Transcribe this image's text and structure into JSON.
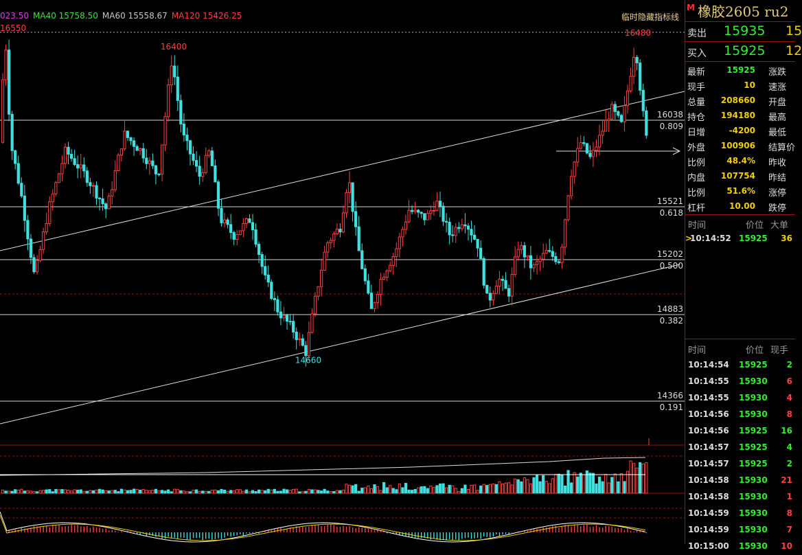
{
  "window": {
    "hide_indicators_label": "临时隐藏指标线"
  },
  "indicators": [
    {
      "label": "023.50",
      "color": "#e040e0"
    },
    {
      "label": "MA40 15758.50",
      "color": "#40e040"
    },
    {
      "label": "MA60 15558.67",
      "color": "#c8c8c8"
    },
    {
      "label": "MA120 15426.25",
      "color": "#ff4040"
    }
  ],
  "chart_data": {
    "type": "candlestick",
    "price_range": [
      14070,
      16600
    ],
    "top_left_label": "16550",
    "annotations": [
      {
        "label": "16400",
        "price": 16400,
        "color": "#ff4040"
      },
      {
        "label": "16480",
        "price": 16480,
        "color": "#ff4040"
      },
      {
        "label": "14660",
        "price": 14660,
        "color": "#40e0e0"
      }
    ],
    "fib_levels": [
      {
        "price": "16038",
        "ratio": "0.809"
      },
      {
        "price": "15521",
        "ratio": "0.618"
      },
      {
        "price": "15202",
        "ratio": "0.500"
      },
      {
        "price": "14883",
        "ratio": "0.382"
      },
      {
        "price": "14366",
        "ratio": "0.191"
      }
    ],
    "colors": {
      "up": "#ff4040",
      "down": "#40e0e0",
      "trend": "#e0e0e0"
    }
  },
  "panel": {
    "badge": "M",
    "instrument": "橡胶2605  ru2",
    "sell": {
      "label": "卖出",
      "price": "15935",
      "qty": "15"
    },
    "buy": {
      "label": "买入",
      "price": "15925",
      "qty": "12"
    },
    "stats": [
      {
        "label": "最新",
        "value": "15925",
        "color": "#33ee33",
        "label2": "涨跌"
      },
      {
        "label": "现手",
        "value": "10",
        "color": "#f0d000",
        "label2": "速涨"
      },
      {
        "label": "总量",
        "value": "208660",
        "color": "#f0d000",
        "label2": "开盘"
      },
      {
        "label": "持仓",
        "value": "194180",
        "color": "#f0d000",
        "label2": "最高"
      },
      {
        "label": "日增",
        "value": "-4200",
        "color": "#f0d000",
        "label2": "最低"
      },
      {
        "label": "外盘",
        "value": "100906",
        "color": "#f0d000",
        "label2": "结算价"
      },
      {
        "label": "比例",
        "value": "48.4%",
        "color": "#f0d000",
        "label2": "昨收"
      },
      {
        "label": "内盘",
        "value": "107754",
        "color": "#f0d000",
        "label2": "昨结"
      },
      {
        "label": "比例",
        "value": "51.6%",
        "color": "#f0d000",
        "label2": "涨停"
      },
      {
        "label": "杠杆",
        "value": "10.00",
        "color": "#f0d000",
        "label2": "跌停"
      }
    ],
    "big_orders": {
      "headers": {
        "time": "时间",
        "price": "价位",
        "size": "大单"
      },
      "rows": [
        {
          "marker": ">",
          "time": "10:14:52",
          "price": "15925",
          "size": "36"
        }
      ]
    },
    "ticks": {
      "headers": {
        "time": "时间",
        "price": "价位",
        "qty": "现手"
      },
      "rows": [
        {
          "time": "10:14:54",
          "price": "15925",
          "qty": "2",
          "dir": "green"
        },
        {
          "time": "10:14:55",
          "price": "15930",
          "qty": "6",
          "dir": "red"
        },
        {
          "time": "10:14:55",
          "price": "15930",
          "qty": "4",
          "dir": "red"
        },
        {
          "time": "10:14:56",
          "price": "15930",
          "qty": "8",
          "dir": "red"
        },
        {
          "time": "10:14:56",
          "price": "15925",
          "qty": "16",
          "dir": "green"
        },
        {
          "time": "10:14:57",
          "price": "15925",
          "qty": "4",
          "dir": "green"
        },
        {
          "time": "10:14:57",
          "price": "15925",
          "qty": "2",
          "dir": "green"
        },
        {
          "time": "10:14:58",
          "price": "15930",
          "qty": "21",
          "dir": "red"
        },
        {
          "time": "10:14:58",
          "price": "15930",
          "qty": "1",
          "dir": "red"
        },
        {
          "time": "10:14:59",
          "price": "15930",
          "qty": "8",
          "dir": "red"
        },
        {
          "time": "10:14:59",
          "price": "15930",
          "qty": "7",
          "dir": "red"
        },
        {
          "time": "10:15:00",
          "price": "15930",
          "qty": "10",
          "dir": "red"
        }
      ]
    }
  }
}
